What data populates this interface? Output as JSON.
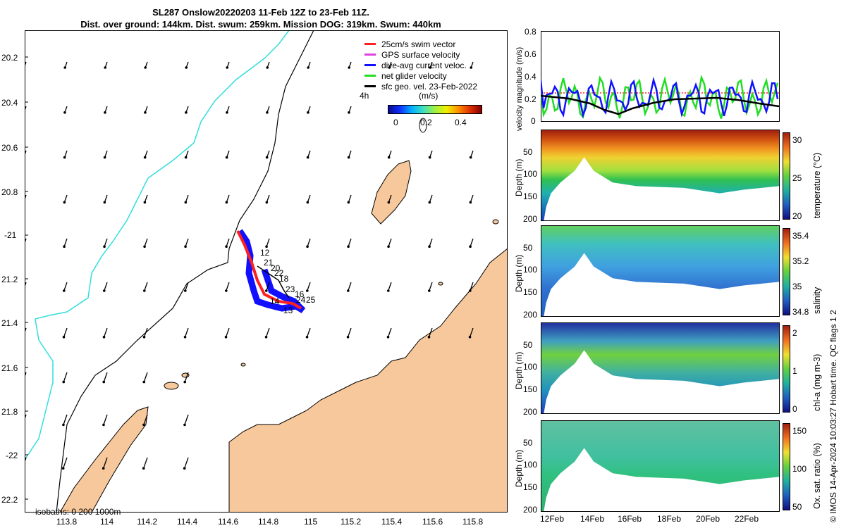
{
  "title": {
    "line1": "SL287 Onslow20220203 11-Feb 12Z to 23-Feb 11Z.",
    "line2": "Dist. over ground: 144km. Dist. swum: 259km. Mission DOG: 319km. Swum: 440km"
  },
  "map": {
    "lat_ticks": [
      "20.2",
      "20.4",
      "20.6",
      "20.8",
      "-21",
      "21.2",
      "21.4",
      "21.6",
      "21.8",
      "-22",
      "22.2"
    ],
    "lon_ticks": [
      "113.8",
      "114",
      "114.2",
      "114.4",
      "114.6",
      "114.8",
      "115",
      "115.2",
      "115.4",
      "115.6",
      "115.8"
    ],
    "legend": [
      {
        "label": "25cm/s swim vector",
        "color": "#ff2020"
      },
      {
        "label": "GPS surface velocity",
        "color": "#e040e0"
      },
      {
        "label": "dive-avg current veloc.",
        "color": "#1010ff"
      },
      {
        "label": "net glider velocity",
        "color": "#22dd22"
      },
      {
        "label": "sfc geo. vel. 23-Feb-2022",
        "color": "#000000"
      }
    ],
    "colorbar": {
      "label": "(m/s)",
      "ticks": [
        "0",
        "0.2",
        "0.4"
      ],
      "prefix": "4h"
    },
    "day_labels": [
      "12",
      "21",
      "20",
      "22",
      "18",
      "23",
      "16",
      "14",
      "24",
      "25",
      "13"
    ],
    "isobaths": "isobaths: 0   200  1000m"
  },
  "velocity_panel": {
    "ylabel": "velocity magnitude (m/s)",
    "yticks": [
      "0.8",
      "0.6",
      "0.4",
      "0.2",
      "0"
    ]
  },
  "panels": [
    {
      "ylabel": "Depth (m)",
      "cbar_label": "temperature (°C)",
      "cbar_ticks": [
        "30",
        "25",
        "20"
      ],
      "yticks": [
        "50",
        "100",
        "150",
        "200"
      ]
    },
    {
      "ylabel": "Depth (m)",
      "cbar_label": "salinity",
      "cbar_ticks": [
        "35.4",
        "35.2",
        "35",
        "34.8"
      ],
      "yticks": [
        "50",
        "100",
        "150",
        "200"
      ]
    },
    {
      "ylabel": "Depth (m)",
      "cbar_label": "chl-a (mg m-3)",
      "cbar_ticks": [
        "2",
        "1",
        "0"
      ],
      "yticks": [
        "50",
        "100",
        "150",
        "200"
      ]
    },
    {
      "ylabel": "Depth (m)",
      "cbar_label": "Ox. sat. ratio (%)",
      "cbar_ticks": [
        "150",
        "100",
        "50"
      ],
      "yticks": [
        "50",
        "100",
        "150",
        "200"
      ]
    }
  ],
  "date_ticks": [
    "12Feb",
    "14Feb",
    "16Feb",
    "18Feb",
    "20Feb",
    "22Feb"
  ],
  "footer": "© IMOS 14-Apr-2024 10:03:27 Hobart time. QC flags 1  2"
}
